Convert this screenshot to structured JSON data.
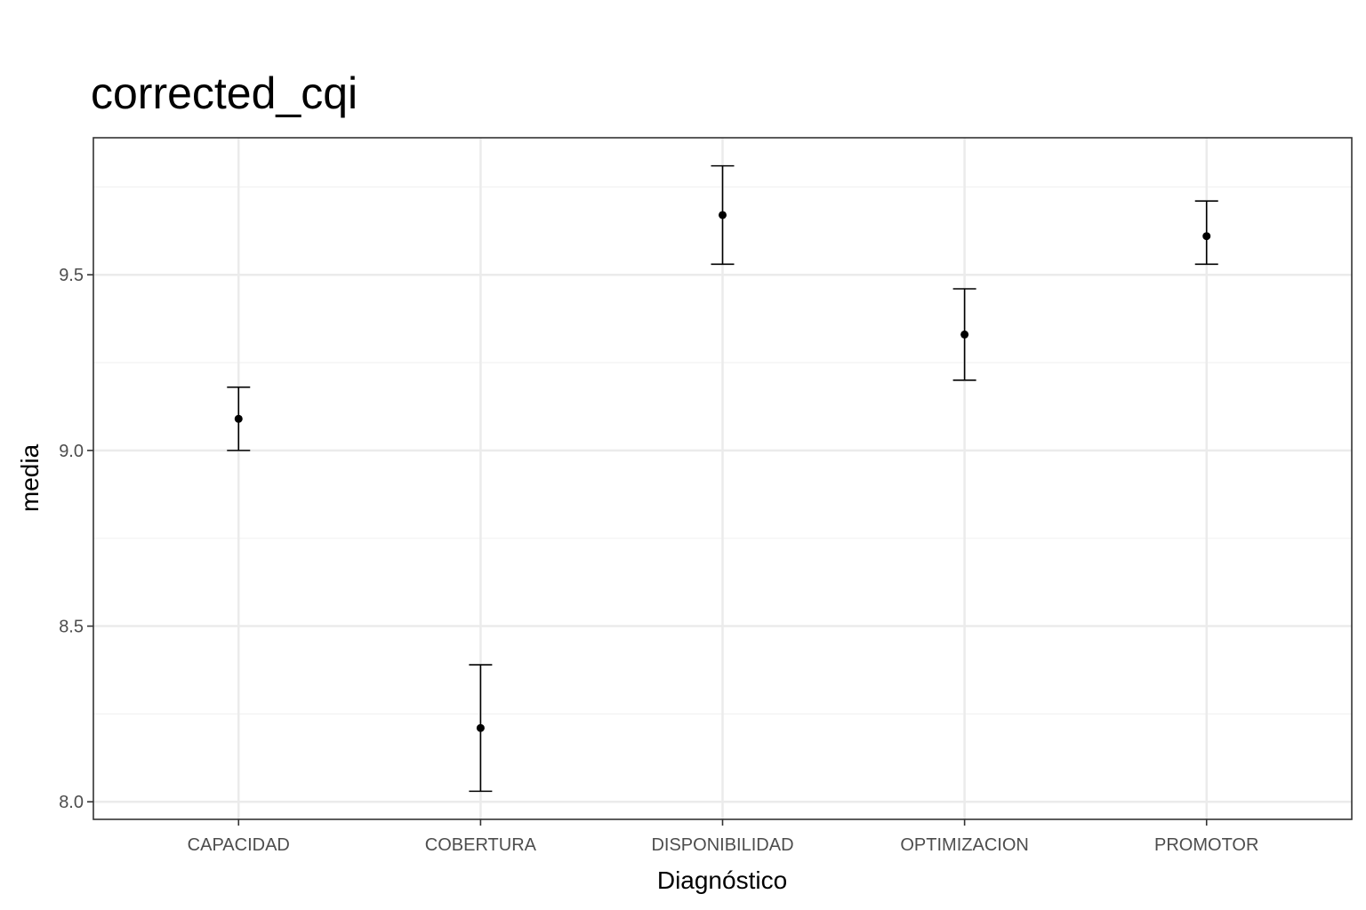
{
  "chart_data": {
    "type": "scatter",
    "title": "corrected_cqi",
    "xlabel": "Diagnóstico",
    "ylabel": "media",
    "categories": [
      "CAPACIDAD",
      "COBERTURA",
      "DISPONIBILIDAD",
      "OPTIMIZACION",
      "PROMOTOR"
    ],
    "values": [
      9.09,
      8.21,
      9.67,
      9.33,
      9.61
    ],
    "error_low": [
      9.0,
      8.03,
      9.53,
      9.2,
      9.53
    ],
    "error_high": [
      9.18,
      8.39,
      9.81,
      9.46,
      9.71
    ],
    "ylim": [
      7.95,
      9.89
    ],
    "y_ticks": [
      8.0,
      8.5,
      9.0,
      9.5
    ],
    "y_tick_labels": [
      "8.0",
      "8.5",
      "9.0",
      "9.5"
    ],
    "grid": true,
    "legend": "none"
  }
}
